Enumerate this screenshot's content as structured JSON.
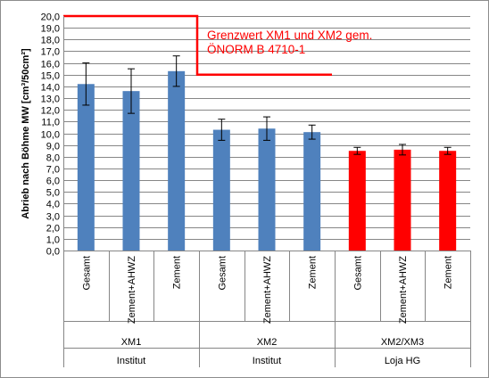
{
  "chart_data": {
    "type": "bar",
    "ylabel": "Abrieb nach Böhme MW [cm³/50cm²]",
    "ylim": [
      0,
      20
    ],
    "ystep": 1,
    "grid": true,
    "categories": [
      "Gesamt",
      "Zement+AHWZ",
      "Zement",
      "Gesamt",
      "Zement+AHWZ",
      "Zement",
      "Gesamt",
      "Zement+AHWZ",
      "Zement"
    ],
    "values": [
      14.2,
      13.6,
      15.3,
      10.3,
      10.4,
      10.1,
      8.5,
      8.6,
      8.5
    ],
    "errors": [
      1.8,
      1.9,
      1.3,
      0.9,
      1.0,
      0.6,
      0.3,
      0.45,
      0.3
    ],
    "bar_colors": [
      "#4f81bd",
      "#4f81bd",
      "#4f81bd",
      "#4f81bd",
      "#4f81bd",
      "#4f81bd",
      "#ff0000",
      "#ff0000",
      "#ff0000"
    ],
    "groups_level1": [
      "XM1",
      "XM2",
      "XM2/XM3"
    ],
    "groups_level2": [
      "Institut",
      "Institut",
      "Loja HG"
    ],
    "limit_line": {
      "label_line1": "Grenzwert XM1 und XM2 gem.",
      "label_line2": "ÖNORM B 4710-1",
      "upper_value": 20,
      "lower_value": 15,
      "color": "#ff0000"
    }
  }
}
